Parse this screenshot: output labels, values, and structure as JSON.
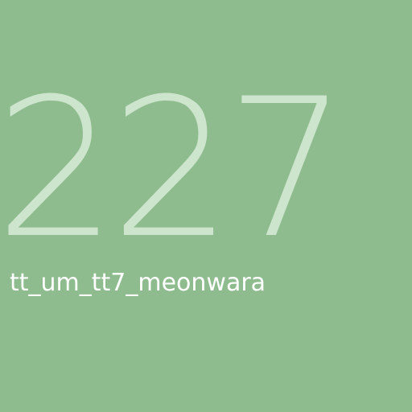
{
  "tile": {
    "number": "227",
    "caption": "tt_um_tt7_meonwara"
  },
  "colors": {
    "background": "#8fbc8f",
    "number": "#cce5cc",
    "caption": "#ffffff"
  }
}
